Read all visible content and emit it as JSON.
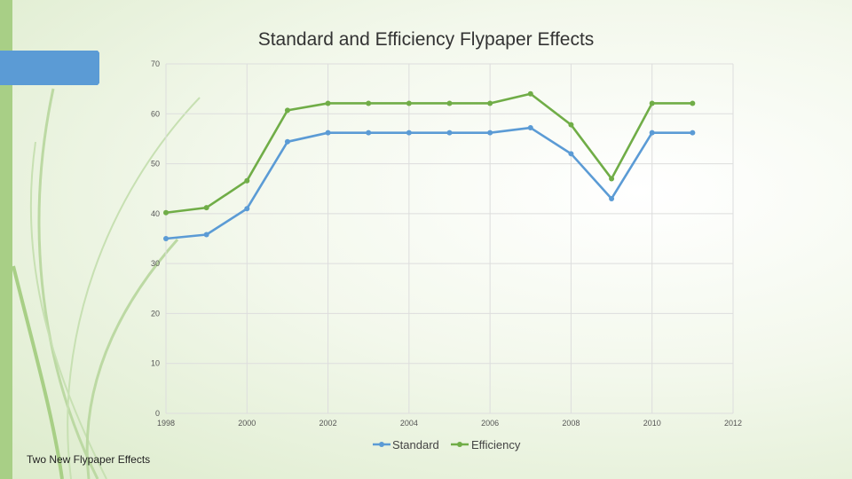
{
  "slide": {
    "title": "Standard and Efficiency Flypaper Effects",
    "footer": "Two New Flypaper Effects"
  },
  "colors": {
    "standard": "#5b9bd5",
    "efficiency": "#70ad47",
    "grid": "#dddddd",
    "accent": "#5b9bd5",
    "strip": "#a8cf86"
  },
  "chart_data": {
    "type": "line",
    "title": "Standard and Efficiency Flypaper Effects",
    "xlabel": "",
    "ylabel": "",
    "xlim": [
      1998,
      2012
    ],
    "ylim": [
      0,
      70
    ],
    "x_ticks": [
      1998,
      2000,
      2002,
      2004,
      2006,
      2008,
      2010,
      2012
    ],
    "y_ticks": [
      0,
      10,
      20,
      30,
      40,
      50,
      60,
      70
    ],
    "grid": true,
    "legend_position": "bottom",
    "x": [
      1998,
      1999,
      2000,
      2001,
      2002,
      2003,
      2004,
      2005,
      2006,
      2007,
      2008,
      2009,
      2010,
      2011
    ],
    "series": [
      {
        "name": "Standard",
        "values": [
          35.0,
          35.8,
          41.0,
          54.4,
          56.2,
          56.2,
          56.2,
          56.2,
          56.2,
          57.2,
          52.0,
          43.0,
          56.2,
          56.2
        ]
      },
      {
        "name": "Efficiency",
        "values": [
          40.2,
          41.2,
          46.6,
          60.7,
          62.1,
          62.1,
          62.1,
          62.1,
          62.1,
          64.0,
          57.8,
          47.0,
          62.1,
          62.1
        ]
      }
    ]
  }
}
